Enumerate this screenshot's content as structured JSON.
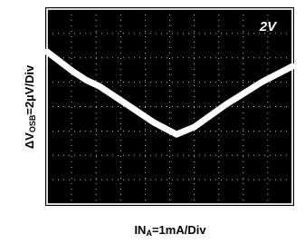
{
  "chart_data": {
    "type": "line",
    "annotation": "2V",
    "x_label": [
      "IN",
      "A",
      "=1mA/Div"
    ],
    "y_label": [
      "ΔV",
      "OSB",
      "=2µV/Div"
    ],
    "x": [
      0,
      1.03,
      1.59,
      2.14,
      3.25,
      4.35,
      5.28,
      6.0,
      7.3,
      8.78,
      10
    ],
    "series": [
      {
        "color": "#ffffff",
        "values": [
          6.25,
          5.46,
          5.09,
          4.83,
          4.09,
          3.35,
          2.86,
          3.16,
          4.09,
          5.02,
          5.65
        ]
      }
    ],
    "xlim": [
      0,
      10
    ],
    "ylim": [
      0,
      8
    ],
    "xticks": [
      0,
      1,
      2,
      3,
      4,
      5,
      6,
      7,
      8,
      9,
      10
    ],
    "yticks": [
      0,
      1,
      2,
      3,
      4,
      5,
      6,
      7,
      8
    ],
    "grid": true
  }
}
